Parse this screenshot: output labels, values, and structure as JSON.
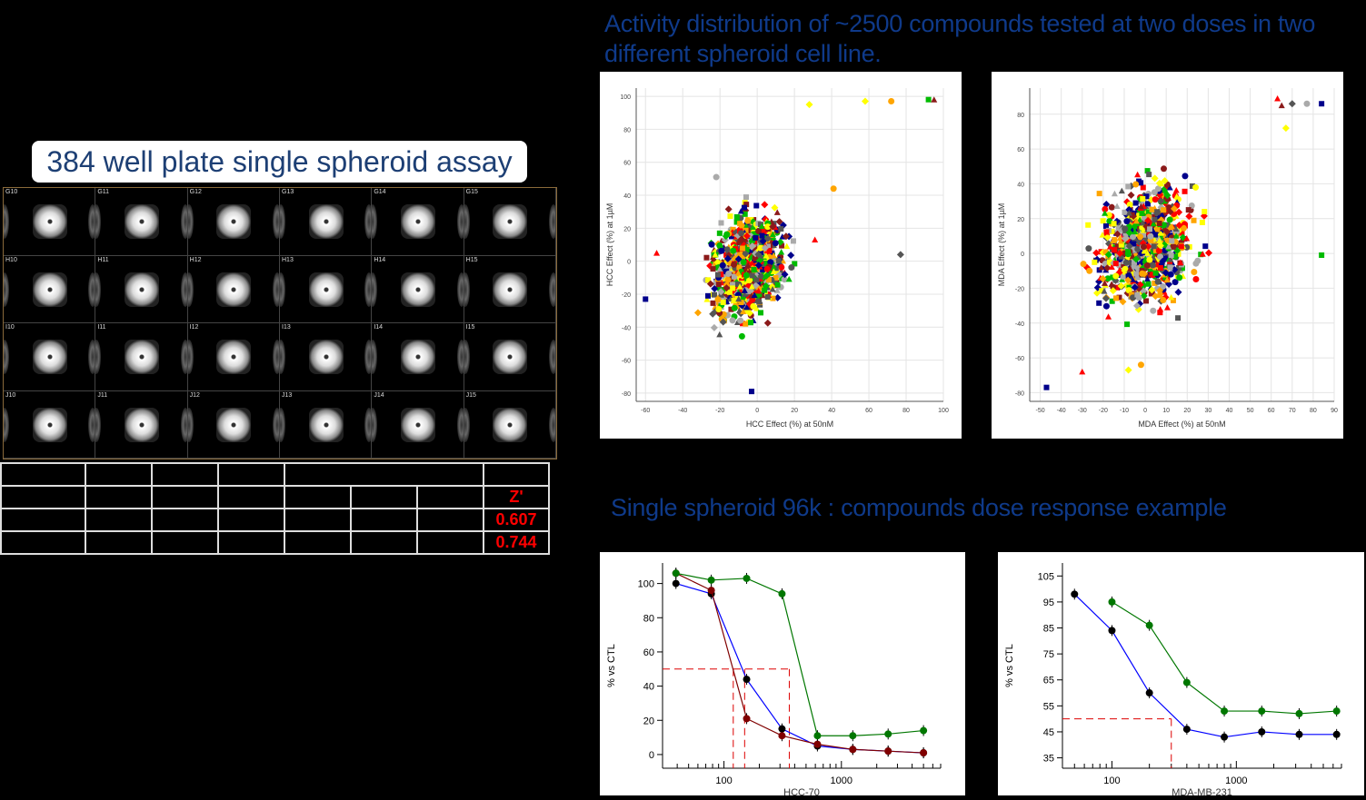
{
  "titles": {
    "main": "Activity distribution of ~2500 compounds tested at two doses in two different spheroid cell line.",
    "plate": "384 well plate single spheroid assay",
    "dose": "Single spheroid 96k : compounds dose response example"
  },
  "plate": {
    "rows": [
      [
        "G10",
        "G11",
        "G12",
        "G13",
        "G14",
        "G15"
      ],
      [
        "H10",
        "H11",
        "H12",
        "H13",
        "H14",
        "H15"
      ],
      [
        "I10",
        "I11",
        "I12",
        "I13",
        "I14",
        "I15"
      ],
      [
        "J10",
        "J11",
        "J12",
        "J13",
        "J14",
        "J15"
      ]
    ]
  },
  "ztable": {
    "header": "Z'",
    "values": [
      "0.607",
      "0.744"
    ]
  },
  "chart_data": [
    {
      "type": "scatter",
      "title": "",
      "xlabel": "HCC Effect (%) at 50nM",
      "ylabel": "HCC Effect (%) at 1µM",
      "xlim": [
        -65,
        100
      ],
      "ylim": [
        -85,
        105
      ],
      "xticks": [
        -60,
        -40,
        -20,
        0,
        20,
        40,
        60,
        80,
        100
      ],
      "yticks": [
        -80,
        -60,
        -40,
        -20,
        0,
        20,
        40,
        60,
        80,
        100
      ],
      "grid": true,
      "note": "~2500 compounds, main cluster centered near (-5, -5); series shown by marker shape/color",
      "series_colors": [
        "#00008b",
        "#ff0000",
        "#ffff00",
        "#ffa500",
        "#00bb00",
        "#8b1a1a",
        "#555555",
        "#aaaaaa"
      ],
      "sample_points": [
        [
          -60,
          -23
        ],
        [
          -54,
          5
        ],
        [
          58,
          97
        ],
        [
          72,
          97
        ],
        [
          92,
          98
        ],
        [
          95,
          98
        ],
        [
          77,
          4
        ],
        [
          -22,
          51
        ],
        [
          -3,
          -79
        ],
        [
          31,
          13
        ],
        [
          28,
          95
        ],
        [
          41,
          44
        ]
      ]
    },
    {
      "type": "scatter",
      "title": "",
      "xlabel": "MDA Effect (%) at 50nM",
      "ylabel": "MDA Effect (%) at 1µM",
      "xlim": [
        -55,
        90
      ],
      "ylim": [
        -85,
        95
      ],
      "xticks": [
        -50,
        -40,
        -30,
        -20,
        -10,
        0,
        10,
        20,
        30,
        40,
        50,
        60,
        70,
        80,
        90
      ],
      "yticks": [
        -80,
        -60,
        -40,
        -20,
        0,
        20,
        40,
        60,
        80
      ],
      "grid": true,
      "note": "~2500 compounds, main cluster centered near (0, 5)",
      "series_colors": [
        "#00008b",
        "#ff0000",
        "#ffff00",
        "#ffa500",
        "#00bb00",
        "#8b1a1a",
        "#555555",
        "#aaaaaa"
      ],
      "sample_points": [
        [
          -47,
          -77
        ],
        [
          -30,
          -68
        ],
        [
          -8,
          -67
        ],
        [
          -2,
          -64
        ],
        [
          84,
          -1
        ],
        [
          65,
          85
        ],
        [
          70,
          86
        ],
        [
          77,
          86
        ],
        [
          84,
          86
        ],
        [
          63,
          89
        ],
        [
          67,
          72
        ]
      ]
    },
    {
      "type": "line",
      "title": "",
      "xlabel": "HCC-70",
      "ylabel": "% vs CTL",
      "xscale": "log",
      "xlim": [
        30,
        7000
      ],
      "ylim": [
        -8,
        112
      ],
      "yticks": [
        0,
        20,
        40,
        60,
        80,
        100
      ],
      "xticks": [
        100,
        1000
      ],
      "x": [
        39,
        78,
        156,
        312,
        625,
        1250,
        2500,
        5000
      ],
      "series": [
        {
          "name": "black",
          "color": "#000000",
          "curve": "#0000ff",
          "values": [
            100,
            94,
            44,
            15,
            5,
            3,
            2,
            1
          ]
        },
        {
          "name": "dark red",
          "color": "#800000",
          "curve": "#800000",
          "values": [
            106,
            96,
            21,
            11,
            6,
            3,
            2,
            1
          ]
        },
        {
          "name": "green",
          "color": "#007700",
          "curve": "#007700",
          "values": [
            106,
            102,
            103,
            94,
            11,
            11,
            12,
            14
          ]
        }
      ],
      "ic50_lines": [
        120,
        150,
        360
      ],
      "ic50_level": 50
    },
    {
      "type": "line",
      "title": "",
      "xlabel": "MDA-MB-231",
      "ylabel": "% vs CTL",
      "xscale": "log",
      "xlim": [
        40,
        7000
      ],
      "ylim": [
        31,
        110
      ],
      "yticks": [
        35,
        45,
        55,
        65,
        75,
        85,
        95,
        105
      ],
      "xticks": [
        100,
        1000
      ],
      "x": [
        50,
        100,
        200,
        400,
        800,
        1600,
        3200,
        6400
      ],
      "series": [
        {
          "name": "black",
          "color": "#000000",
          "curve": "#0000ff",
          "values": [
            98,
            84,
            60,
            46,
            43,
            45,
            44,
            44
          ]
        },
        {
          "name": "green",
          "color": "#007700",
          "curve": "#007700",
          "values": [
            null,
            95,
            86,
            64,
            53,
            53,
            52,
            53
          ]
        }
      ],
      "ic50_lines": [
        300
      ],
      "ic50_level": 50
    }
  ]
}
